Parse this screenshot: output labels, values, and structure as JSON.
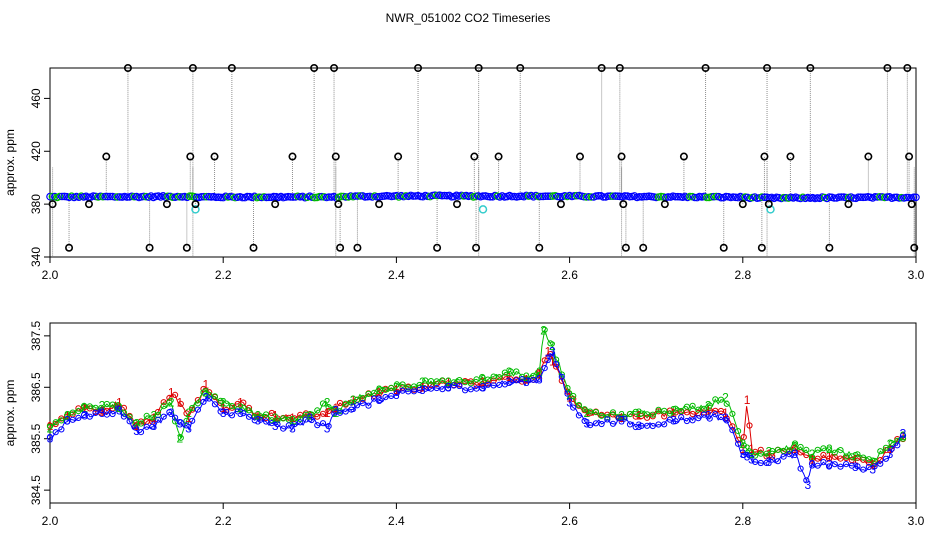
{
  "title": "NWR_051002  CO2 Timeseries",
  "colors": {
    "blue": "#0000ff",
    "cyan": "#33cccc",
    "green": "#00bb00",
    "red": "#dd0000",
    "gray": "#909090",
    "black": "#000000"
  },
  "chart_data": [
    {
      "type": "scatter",
      "ylabel": "approx. ppm",
      "xlim": [
        2.0,
        3.0
      ],
      "ylim": [
        340,
        483
      ],
      "xticks": [
        "2.0",
        "2.2",
        "2.4",
        "2.6",
        "2.8",
        "3.0"
      ],
      "yticks": [
        "340",
        "380",
        "420",
        "460"
      ],
      "baseline": [
        [
          2.0,
          385.5
        ],
        [
          2.1,
          385.6
        ],
        [
          2.16,
          385.8
        ],
        [
          2.17,
          385.4
        ],
        [
          2.3,
          385.4
        ],
        [
          2.33,
          385.2
        ],
        [
          2.34,
          385.8
        ],
        [
          2.45,
          386.2
        ],
        [
          2.5,
          386.0
        ],
        [
          2.55,
          386.1
        ],
        [
          2.6,
          385.9
        ],
        [
          2.7,
          385.6
        ],
        [
          2.8,
          385.2
        ],
        [
          2.83,
          384.6
        ],
        [
          2.9,
          384.8
        ],
        [
          3.0,
          385.2
        ]
      ],
      "outliers": [
        [
          2.003,
          380
        ],
        [
          2.022,
          347
        ],
        [
          2.045,
          380
        ],
        [
          2.065,
          416
        ],
        [
          2.09,
          483
        ],
        [
          2.115,
          347
        ],
        [
          2.135,
          380
        ],
        [
          2.158,
          347
        ],
        [
          2.162,
          416
        ],
        [
          2.165,
          483
        ],
        [
          2.168,
          380
        ],
        [
          2.19,
          416
        ],
        [
          2.21,
          483
        ],
        [
          2.235,
          347
        ],
        [
          2.26,
          380
        ],
        [
          2.28,
          416
        ],
        [
          2.305,
          483
        ],
        [
          2.328,
          483
        ],
        [
          2.33,
          416
        ],
        [
          2.333,
          380
        ],
        [
          2.335,
          347
        ],
        [
          2.355,
          347
        ],
        [
          2.38,
          380
        ],
        [
          2.402,
          416
        ],
        [
          2.425,
          483
        ],
        [
          2.447,
          347
        ],
        [
          2.47,
          380
        ],
        [
          2.49,
          416
        ],
        [
          2.492,
          347
        ],
        [
          2.495,
          483
        ],
        [
          2.518,
          416
        ],
        [
          2.543,
          483
        ],
        [
          2.565,
          347
        ],
        [
          2.59,
          380
        ],
        [
          2.612,
          416
        ],
        [
          2.637,
          483
        ],
        [
          2.658,
          483
        ],
        [
          2.66,
          416
        ],
        [
          2.662,
          380
        ],
        [
          2.665,
          347
        ],
        [
          2.685,
          347
        ],
        [
          2.71,
          380
        ],
        [
          2.732,
          416
        ],
        [
          2.757,
          483
        ],
        [
          2.778,
          347
        ],
        [
          2.8,
          380
        ],
        [
          2.822,
          347
        ],
        [
          2.825,
          416
        ],
        [
          2.828,
          483
        ],
        [
          2.83,
          380
        ],
        [
          2.855,
          416
        ],
        [
          2.878,
          483
        ],
        [
          2.9,
          347
        ],
        [
          2.922,
          380
        ],
        [
          2.945,
          416
        ],
        [
          2.967,
          483
        ],
        [
          2.99,
          483
        ],
        [
          2.992,
          416
        ],
        [
          2.995,
          380
        ],
        [
          2.998,
          347
        ]
      ],
      "cyan_points": [
        [
          2.168,
          376
        ],
        [
          2.5,
          376
        ],
        [
          2.832,
          376
        ]
      ]
    },
    {
      "type": "line",
      "ylabel": "approx. ppm",
      "xlim": [
        2.0,
        3.0
      ],
      "ylim": [
        384.25,
        387.75
      ],
      "xticks": [
        "2.0",
        "2.2",
        "2.4",
        "2.6",
        "2.8",
        "3.0"
      ],
      "yticks": [
        "384.5",
        "385.5",
        "386.5",
        "387.5"
      ],
      "series": [
        {
          "name": "1",
          "values": [
            [
              2.0,
              385.75
            ],
            [
              2.02,
              385.95
            ],
            [
              2.04,
              386.1
            ],
            [
              2.06,
              386.05
            ],
            [
              2.08,
              386.2
            ],
            [
              2.1,
              385.75
            ],
            [
              2.12,
              385.9
            ],
            [
              2.14,
              386.4
            ],
            [
              2.15,
              386.2
            ],
            [
              2.16,
              385.9
            ],
            [
              2.18,
              386.55
            ],
            [
              2.2,
              386.1
            ],
            [
              2.22,
              386.2
            ],
            [
              2.24,
              385.95
            ],
            [
              2.26,
              385.95
            ],
            [
              2.28,
              385.9
            ],
            [
              2.3,
              385.95
            ],
            [
              2.32,
              386.0
            ],
            [
              2.33,
              386.1
            ],
            [
              2.35,
              386.25
            ],
            [
              2.38,
              386.4
            ],
            [
              2.4,
              386.45
            ],
            [
              2.43,
              386.5
            ],
            [
              2.46,
              386.6
            ],
            [
              2.5,
              386.6
            ],
            [
              2.53,
              386.7
            ],
            [
              2.55,
              386.65
            ],
            [
              2.565,
              386.75
            ],
            [
              2.575,
              387.2
            ],
            [
              2.58,
              387.0
            ],
            [
              2.6,
              386.3
            ],
            [
              2.62,
              386.0
            ],
            [
              2.66,
              385.9
            ],
            [
              2.68,
              385.95
            ],
            [
              2.72,
              386.0
            ],
            [
              2.76,
              386.05
            ],
            [
              2.78,
              386.0
            ],
            [
              2.8,
              385.3
            ],
            [
              2.805,
              386.25
            ],
            [
              2.81,
              385.3
            ],
            [
              2.83,
              385.2
            ],
            [
              2.86,
              385.3
            ],
            [
              2.88,
              385.1
            ],
            [
              2.9,
              385.15
            ],
            [
              2.93,
              385.1
            ],
            [
              2.95,
              385.0
            ],
            [
              2.97,
              385.3
            ],
            [
              2.985,
              385.55
            ]
          ]
        },
        {
          "name": "2",
          "values": [
            [
              2.0,
              385.7
            ],
            [
              2.02,
              385.95
            ],
            [
              2.04,
              386.1
            ],
            [
              2.06,
              386.15
            ],
            [
              2.08,
              386.1
            ],
            [
              2.1,
              385.8
            ],
            [
              2.12,
              385.95
            ],
            [
              2.14,
              386.2
            ],
            [
              2.15,
              385.5
            ],
            [
              2.16,
              386.0
            ],
            [
              2.18,
              386.4
            ],
            [
              2.2,
              386.2
            ],
            [
              2.22,
              386.1
            ],
            [
              2.24,
              385.95
            ],
            [
              2.26,
              385.9
            ],
            [
              2.28,
              385.85
            ],
            [
              2.3,
              385.95
            ],
            [
              2.32,
              386.2
            ],
            [
              2.33,
              386.0
            ],
            [
              2.35,
              386.25
            ],
            [
              2.38,
              386.45
            ],
            [
              2.4,
              386.5
            ],
            [
              2.43,
              386.6
            ],
            [
              2.46,
              386.6
            ],
            [
              2.5,
              386.65
            ],
            [
              2.53,
              386.8
            ],
            [
              2.55,
              386.7
            ],
            [
              2.565,
              386.8
            ],
            [
              2.57,
              387.6
            ],
            [
              2.58,
              387.3
            ],
            [
              2.6,
              386.35
            ],
            [
              2.62,
              386.0
            ],
            [
              2.66,
              385.95
            ],
            [
              2.68,
              386.0
            ],
            [
              2.72,
              386.05
            ],
            [
              2.76,
              386.15
            ],
            [
              2.78,
              386.3
            ],
            [
              2.8,
              385.4
            ],
            [
              2.805,
              385.3
            ],
            [
              2.81,
              385.2
            ],
            [
              2.83,
              385.25
            ],
            [
              2.86,
              385.35
            ],
            [
              2.88,
              385.2
            ],
            [
              2.9,
              385.3
            ],
            [
              2.93,
              385.15
            ],
            [
              2.95,
              385.05
            ],
            [
              2.97,
              385.4
            ],
            [
              2.985,
              385.55
            ]
          ]
        },
        {
          "name": "3",
          "values": [
            [
              2.0,
              385.5
            ],
            [
              2.02,
              385.85
            ],
            [
              2.04,
              385.95
            ],
            [
              2.06,
              386.0
            ],
            [
              2.08,
              386.05
            ],
            [
              2.1,
              385.65
            ],
            [
              2.12,
              385.75
            ],
            [
              2.14,
              386.0
            ],
            [
              2.15,
              385.8
            ],
            [
              2.16,
              385.7
            ],
            [
              2.18,
              386.3
            ],
            [
              2.2,
              386.0
            ],
            [
              2.22,
              386.0
            ],
            [
              2.24,
              385.85
            ],
            [
              2.26,
              385.75
            ],
            [
              2.28,
              385.7
            ],
            [
              2.3,
              385.9
            ],
            [
              2.32,
              385.7
            ],
            [
              2.33,
              386.05
            ],
            [
              2.35,
              386.1
            ],
            [
              2.38,
              386.25
            ],
            [
              2.4,
              386.35
            ],
            [
              2.43,
              386.45
            ],
            [
              2.46,
              386.5
            ],
            [
              2.5,
              386.5
            ],
            [
              2.53,
              386.6
            ],
            [
              2.55,
              386.6
            ],
            [
              2.565,
              386.65
            ],
            [
              2.575,
              387.05
            ],
            [
              2.58,
              387.2
            ],
            [
              2.6,
              386.2
            ],
            [
              2.62,
              385.8
            ],
            [
              2.66,
              385.85
            ],
            [
              2.68,
              385.75
            ],
            [
              2.72,
              385.85
            ],
            [
              2.76,
              385.95
            ],
            [
              2.78,
              385.9
            ],
            [
              2.8,
              385.2
            ],
            [
              2.805,
              385.15
            ],
            [
              2.81,
              385.1
            ],
            [
              2.83,
              385.05
            ],
            [
              2.86,
              385.2
            ],
            [
              2.875,
              384.6
            ],
            [
              2.88,
              385.0
            ],
            [
              2.9,
              385.0
            ],
            [
              2.93,
              384.95
            ],
            [
              2.95,
              384.9
            ],
            [
              2.97,
              385.2
            ],
            [
              2.985,
              385.6
            ]
          ]
        }
      ]
    }
  ]
}
